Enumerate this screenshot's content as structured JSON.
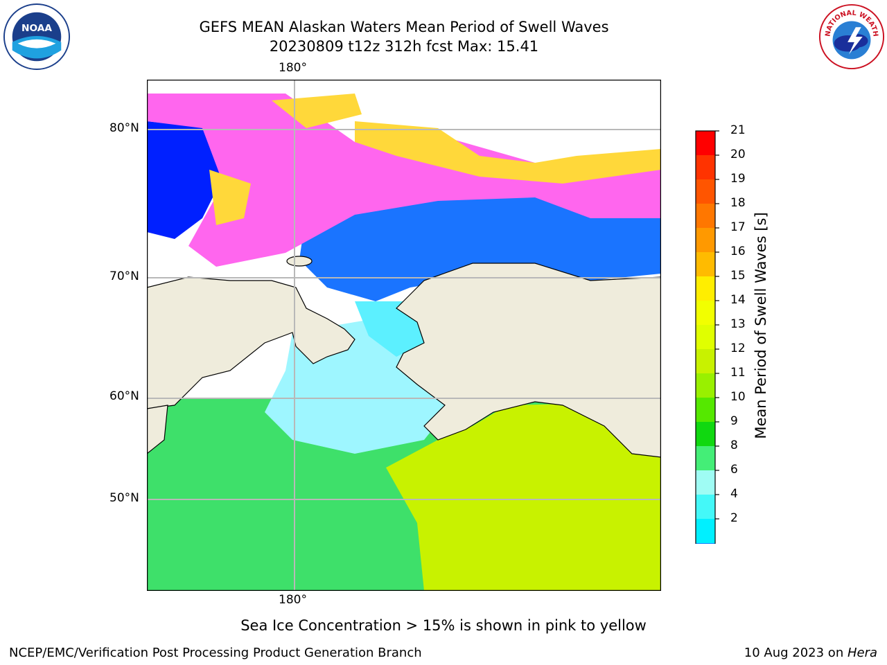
{
  "header": {
    "title_line1": "GEFS MEAN Alaskan Waters Mean Period of Swell Waves",
    "title_line2": "20230809 t12z 312h fcst   Max: 15.41"
  },
  "logos": {
    "left": {
      "icon": "noaa-logo-icon",
      "text": "NOAA"
    },
    "right": {
      "icon": "nws-logo-icon",
      "text": "NATIONAL WEATHER SERVICE"
    }
  },
  "map": {
    "lon_label_top": "180°",
    "lon_label_bottom": "180°",
    "lat_labels": [
      "80°N",
      "70°N",
      "60°N",
      "50°N"
    ],
    "colors": {
      "land": "#efecdc",
      "grid": "#b8b8b8",
      "coast": "#000000",
      "ice_pink": "#ff66ee",
      "ice_yellow": "#ffd83a",
      "deep_blue": "#0020ff",
      "blue": "#1a74ff",
      "cyan": "#5cf0ff",
      "pale_cyan": "#9ef6ff",
      "green": "#3ee06a",
      "bright_green": "#1ad41a",
      "yellow_green": "#c8f200",
      "lime": "#dcff00"
    }
  },
  "colorbar": {
    "label": "Mean Period of Swell Waves [s]",
    "ticks": [
      "21",
      "20",
      "19",
      "18",
      "17",
      "16",
      "15",
      "14",
      "13",
      "12",
      "11",
      "10",
      "9",
      "8",
      "6",
      "4",
      "2"
    ],
    "colors": [
      "#ff0000",
      "#ff3300",
      "#ff5500",
      "#ff7700",
      "#ff9900",
      "#ffbb00",
      "#ffee00",
      "#f2ff00",
      "#e0ff00",
      "#c8f200",
      "#99f000",
      "#55e800",
      "#10d810",
      "#44ee77",
      "#9ffcf4",
      "#44f8f8",
      "#00f0ff",
      "#0080ff",
      "#0030ff"
    ]
  },
  "note": "Sea Ice Concentration > 15% is shown in pink to yellow",
  "footer": {
    "left": "NCEP/EMC/Verification Post Processing Product Generation Branch",
    "right_prefix": "10 Aug 2023 on ",
    "right_host": "Hera"
  }
}
